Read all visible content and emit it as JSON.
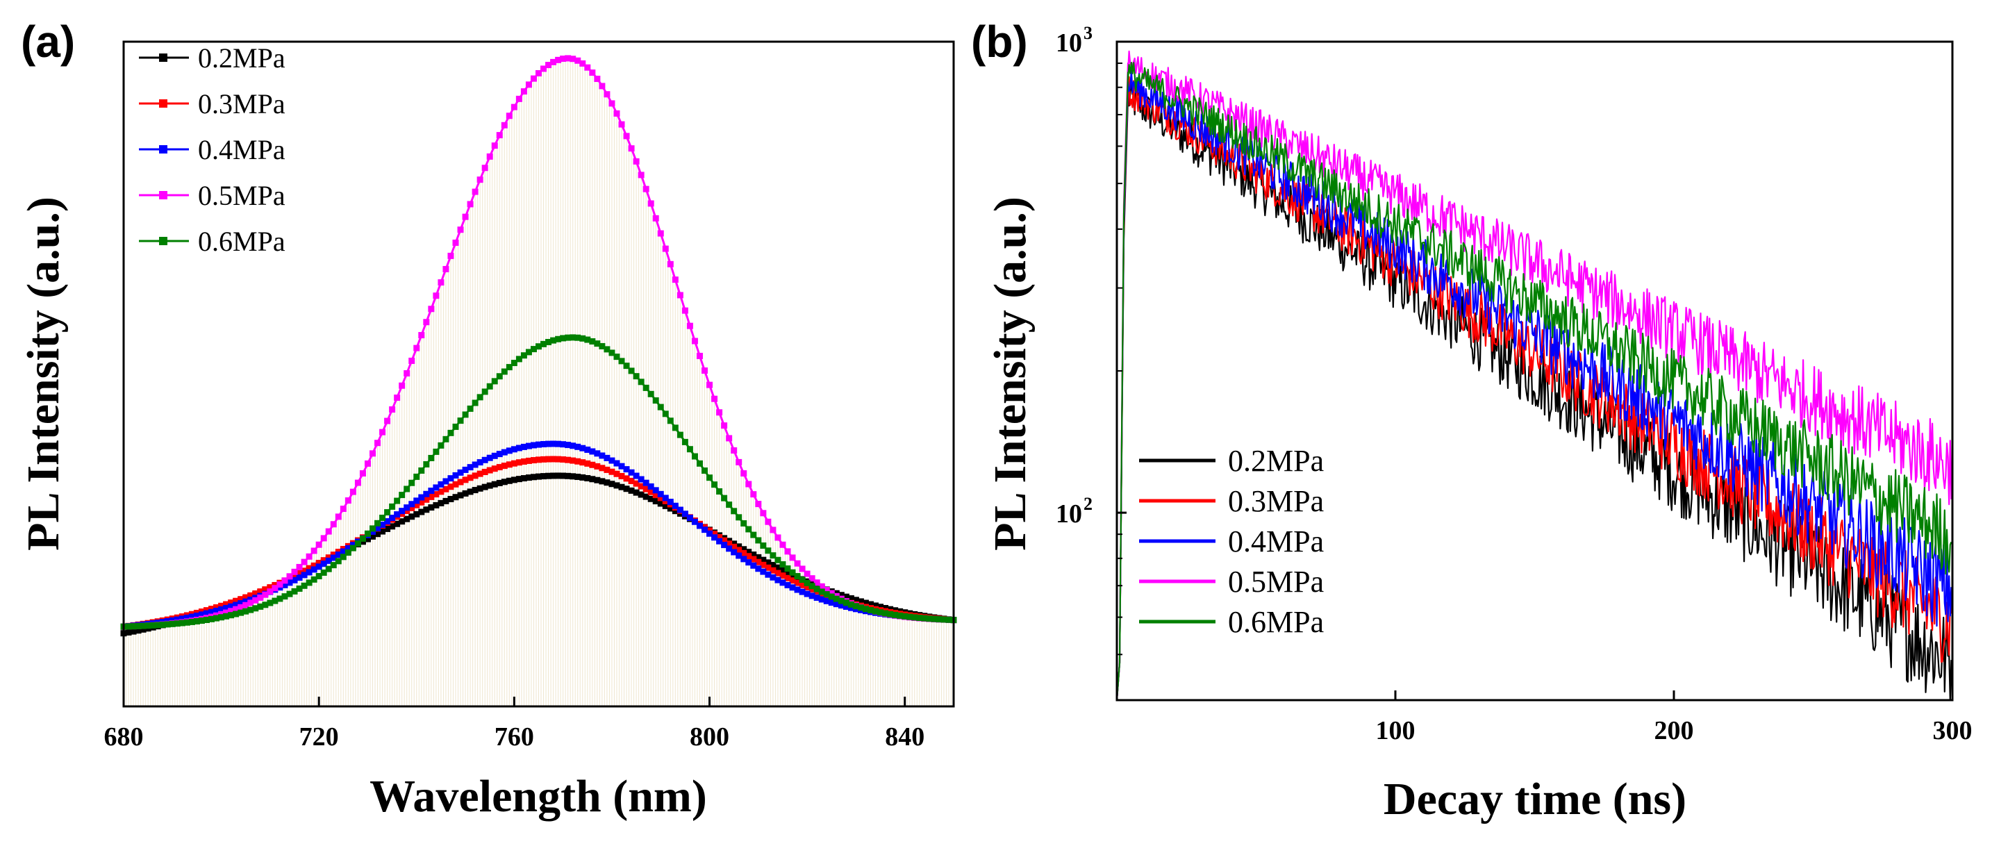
{
  "chart_data": [
    {
      "panel": "(a)",
      "type": "line",
      "xlabel": "Wavelength (nm)",
      "ylabel": "PL Intensity (a.u.)",
      "xlim": [
        680,
        850
      ],
      "ylim": [
        0,
        1.0
      ],
      "xticks": [
        680,
        720,
        760,
        800,
        840
      ],
      "yticks_shown": false,
      "marker": "square",
      "legend_position": "top-left",
      "series": [
        {
          "name": "0.2MPa",
          "color": "#000000",
          "peak_x": 769,
          "peak_y": 0.347,
          "left_sigma": 41,
          "right_sigma": 33,
          "base_left": 0.11,
          "base_right": 0.13
        },
        {
          "name": "0.3MPa",
          "color": "#ff0000",
          "peak_x": 768,
          "peak_y": 0.372,
          "left_sigma": 36,
          "right_sigma": 30,
          "base_left": 0.12,
          "base_right": 0.13
        },
        {
          "name": "0.4MPa",
          "color": "#0000ff",
          "peak_x": 768,
          "peak_y": 0.395,
          "left_sigma": 33,
          "right_sigma": 27,
          "base_left": 0.12,
          "base_right": 0.13
        },
        {
          "name": "0.5MPa",
          "color": "#ff00ff",
          "peak_x": 771,
          "peak_y": 0.975,
          "left_sigma": 26,
          "right_sigma": 22,
          "base_left": 0.12,
          "base_right": 0.13
        },
        {
          "name": "0.6MPa",
          "color": "#008000",
          "peak_x": 772,
          "peak_y": 0.555,
          "left_sigma": 28,
          "right_sigma": 24,
          "base_left": 0.12,
          "base_right": 0.13
        }
      ]
    },
    {
      "panel": "(b)",
      "type": "line",
      "xlabel": "Decay time (ns)",
      "ylabel": "PL Intensity (a.u.)",
      "xlim": [
        0,
        300
      ],
      "ylim": [
        40,
        1000
      ],
      "yscale": "log",
      "xticks": [
        100,
        200,
        300
      ],
      "yticks": [
        {
          "value": 100,
          "label": "10",
          "exp": "2"
        },
        {
          "value": 1000,
          "label": "10",
          "exp": "3"
        }
      ],
      "legend_position": "bottom-left",
      "rise_start_ns": 0,
      "rise_peak_ns": 4,
      "series": [
        {
          "name": "0.2MPa",
          "color": "#000000",
          "peak": 760,
          "end_value": 48,
          "noise": 0.09
        },
        {
          "name": "0.3MPa",
          "color": "#ff0000",
          "peak": 790,
          "end_value": 58,
          "noise": 0.08
        },
        {
          "name": "0.4MPa",
          "color": "#0000ff",
          "peak": 820,
          "end_value": 68,
          "noise": 0.08
        },
        {
          "name": "0.5MPa",
          "color": "#ff00ff",
          "peak": 900,
          "end_value": 125,
          "noise": 0.07
        },
        {
          "name": "0.6MPa",
          "color": "#008000",
          "peak": 860,
          "end_value": 88,
          "noise": 0.07
        }
      ]
    }
  ]
}
